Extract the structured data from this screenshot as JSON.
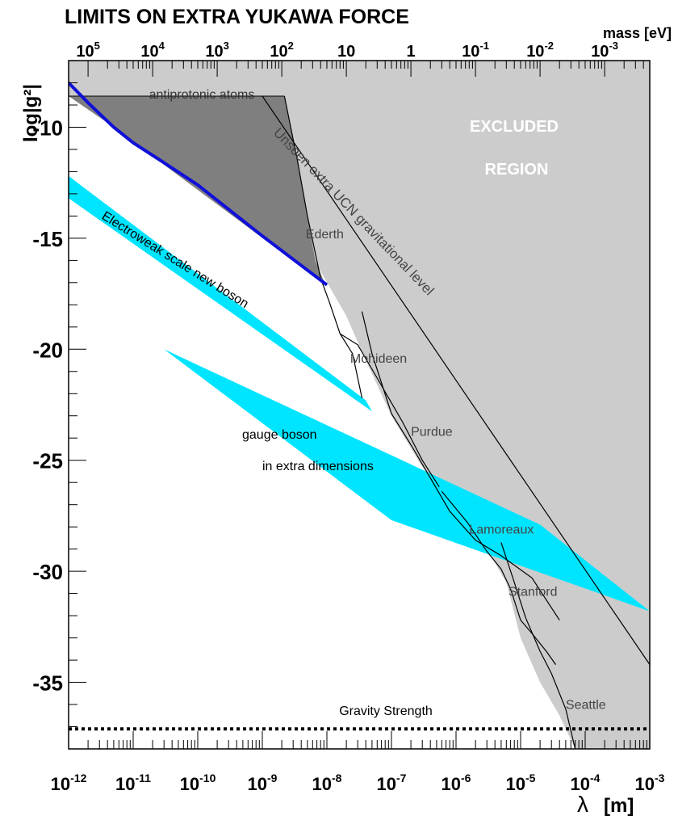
{
  "chart_data": {
    "type": "area",
    "title": "LIMITS ON EXTRA YUKAWA FORCE",
    "xlabel": "λ",
    "xunit": "[m]",
    "ylabel": "log|g²|",
    "x_scale": "log",
    "xlim": [
      1e-12,
      0.001
    ],
    "ylim": [
      -38,
      -7
    ],
    "grid": false,
    "x_ticks": [
      {
        "v": 1e-12,
        "base": "10",
        "exp": "-12"
      },
      {
        "v": 1e-11,
        "base": "10",
        "exp": "-11"
      },
      {
        "v": 1e-10,
        "base": "10",
        "exp": "-10"
      },
      {
        "v": 1e-09,
        "base": "10",
        "exp": "-9"
      },
      {
        "v": 1e-08,
        "base": "10",
        "exp": "-8"
      },
      {
        "v": 1e-07,
        "base": "10",
        "exp": "-7"
      },
      {
        "v": 1e-06,
        "base": "10",
        "exp": "-6"
      },
      {
        "v": 1e-05,
        "base": "10",
        "exp": "-5"
      },
      {
        "v": 0.0001,
        "base": "10",
        "exp": "-4"
      },
      {
        "v": 0.001,
        "base": "10",
        "exp": "-3"
      }
    ],
    "y_ticks": [
      {
        "v": -10,
        "label": "-10"
      },
      {
        "v": -15,
        "label": "-15"
      },
      {
        "v": -20,
        "label": "-20"
      },
      {
        "v": -25,
        "label": "-25"
      },
      {
        "v": -30,
        "label": "-30"
      },
      {
        "v": -35,
        "label": "-35"
      }
    ],
    "top_axis": {
      "label": "mass [eV]",
      "ticks": [
        {
          "x": 2e-12,
          "base": "10",
          "exp": "5"
        },
        {
          "x": 2e-11,
          "base": "10",
          "exp": "4"
        },
        {
          "x": 2e-10,
          "base": "10",
          "exp": "3"
        },
        {
          "x": 2e-09,
          "base": "10",
          "exp": "2"
        },
        {
          "x": 2e-08,
          "base": "10",
          "exp": ""
        },
        {
          "x": 2e-07,
          "base": "1",
          "exp": ""
        },
        {
          "x": 2e-06,
          "base": "10",
          "exp": "-1"
        },
        {
          "x": 2e-05,
          "base": "10",
          "exp": "-2"
        },
        {
          "x": 0.0002,
          "base": "10",
          "exp": "-3"
        }
      ]
    },
    "colors": {
      "excluded": "#cccccc",
      "antiprotonic": "#7f7f7f",
      "band": "#00e5ff",
      "blue_curve": "#1010d8",
      "frame": "#000000"
    },
    "regions": {
      "excluded": {
        "label_line1": "EXCLUDED",
        "label_line2": "REGION",
        "boundary_x": [
          1e-12,
          3e-10,
          1e-09,
          2e-09,
          4e-09,
          7e-09,
          2e-08,
          4e-08,
          1e-07,
          3e-07,
          1e-06,
          3e-06,
          6e-06,
          1e-05,
          2e-05,
          4e-05,
          7e-05,
          0.001
        ],
        "boundary_y": [
          -8.6,
          -8.6,
          -9.8,
          -12.5,
          -14.5,
          -16.2,
          -18.5,
          -20.5,
          -23,
          -25.3,
          -27.2,
          -29,
          -30.5,
          -33,
          -35,
          -36.5,
          -38,
          -38
        ]
      },
      "antiprotonic": {
        "label": "antiprotonic atoms",
        "x": [
          1e-12,
          2.2e-09,
          3.5e-09,
          6.6e-09,
          9.5e-09,
          4e-12,
          1e-12
        ],
        "y": [
          -8.6,
          -8.6,
          -11.5,
          -16,
          -17.1,
          -9.8,
          -8.6
        ]
      },
      "electroweak_band": {
        "label": "Electroweak scale new boson",
        "upper_x": [
          1e-12,
          4e-08
        ],
        "upper_y": [
          -12.2,
          -22.3
        ],
        "lower_x": [
          5e-08,
          1e-12
        ],
        "lower_y": [
          -22.8,
          -13.2
        ]
      },
      "gauge_band": {
        "label_line1": "gauge boson",
        "label_line2": "in extra dimensions",
        "x": [
          3e-11,
          2e-05,
          0.001,
          1e-07
        ],
        "y": [
          -20,
          -27.9,
          -31.8,
          -27.7
        ]
      }
    },
    "series": [
      {
        "name": "",
        "x": [
          1e-12,
          2e-12,
          5e-12,
          1e-11,
          3e-11,
          1e-10,
          1e-09,
          1e-08
        ],
        "y": [
          -8,
          -8.9,
          -10,
          -10.7,
          -11.6,
          -12.6,
          -14.9,
          -17.1
        ]
      }
    ],
    "curves": [
      {
        "name": "Unseen extra UCN gravitational level",
        "x": [
          1e-09,
          0.001
        ],
        "y": [
          -8.6,
          -34.2
        ]
      },
      {
        "name": "Ederth",
        "x": [
          2.2e-09,
          3.5e-09,
          5e-09,
          8e-09,
          1.1e-08,
          1.6e-08,
          2.5e-08,
          3.5e-08
        ],
        "y": [
          -8.6,
          -11.5,
          -14,
          -16.8,
          -17.9,
          -19.3,
          -20.2,
          -22.2
        ]
      },
      {
        "name": "Mohideen",
        "x": [
          1.6e-08,
          3e-08,
          6e-08,
          1.5e-07,
          3e-07,
          5.5e-07
        ],
        "y": [
          -19.3,
          -19.8,
          -21.3,
          -23.3,
          -25,
          -26.2
        ]
      },
      {
        "name": "Purdue",
        "x": [
          3.5e-08,
          5e-08,
          1e-07,
          2e-07,
          4e-07,
          8e-07,
          2e-06,
          5e-06,
          1.5e-05,
          4e-05
        ],
        "y": [
          -18.3,
          -20.2,
          -22.9,
          -24.3,
          -25.8,
          -27.3,
          -28.6,
          -29.3,
          -30.3,
          -32.2
        ]
      },
      {
        "name": "Lamoreaux",
        "x": [
          6e-07,
          1.5e-06,
          3e-06,
          5e-06,
          7e-06,
          1e-05,
          1.5e-05,
          2.5e-05,
          3.5e-05
        ],
        "y": [
          -26.4,
          -27.8,
          -29.1,
          -29.9,
          -30.8,
          -32.2,
          -32.8,
          -33.6,
          -34.2
        ]
      },
      {
        "name": "Stanford",
        "x": [
          5e-06,
          8e-06,
          1.2e-05,
          2e-05,
          3e-05,
          5e-05,
          7e-05
        ],
        "y": [
          -28.7,
          -30.5,
          -32.1,
          -33.6,
          -34.6,
          -36.2,
          -38
        ]
      }
    ],
    "annotations": [
      {
        "text": "Ederth",
        "x": 4.7e-09,
        "y": -15
      },
      {
        "text": "Mohideen",
        "x": 2.3e-08,
        "y": -20.6
      },
      {
        "text": "Purdue",
        "x": 2e-07,
        "y": -23.9
      },
      {
        "text": "Lamoreaux",
        "x": 1.6e-06,
        "y": -28.3
      },
      {
        "text": "Stanford",
        "x": 6.5e-06,
        "y": -31.1
      },
      {
        "text": "Seattle",
        "x": 5e-05,
        "y": -36.2
      }
    ],
    "gravity_line": {
      "label": "Gravity Strength",
      "y": -37.1
    }
  }
}
